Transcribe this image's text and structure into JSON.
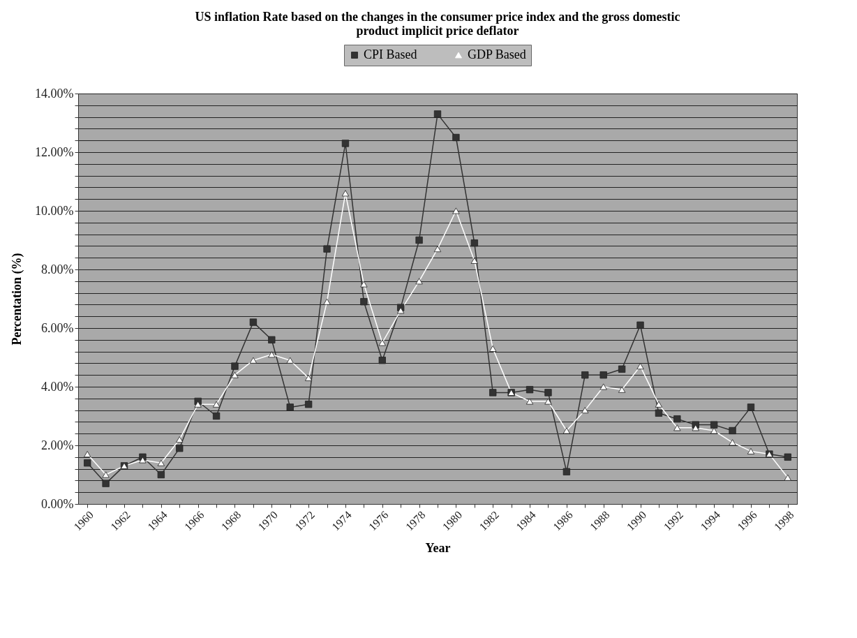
{
  "chart_data": {
    "type": "line",
    "title": "US inflation Rate based on the changes in the consumer price index and the gross domestic product implicit price deflator",
    "xlabel": "Year",
    "ylabel": "Percentation (%)",
    "categories": [
      "1960",
      null,
      "1962",
      null,
      "1964",
      null,
      "1966",
      null,
      "1968",
      null,
      "1970",
      null,
      "1972",
      null,
      "1974",
      null,
      "1976",
      null,
      "1978",
      null,
      "1980",
      null,
      "1982",
      null,
      "1984",
      null,
      "1986",
      null,
      "1988",
      null,
      "1990",
      null,
      "1992",
      null,
      "1994",
      null,
      "1996",
      null,
      "1998"
    ],
    "series": [
      {
        "name": "CPI Based",
        "color": "#333333",
        "marker": "square",
        "values": [
          1.4,
          0.7,
          1.3,
          1.6,
          1.0,
          1.9,
          3.5,
          3.0,
          4.7,
          6.2,
          5.6,
          3.3,
          3.4,
          8.7,
          12.3,
          6.9,
          4.9,
          6.7,
          9.0,
          13.3,
          12.5,
          8.9,
          3.8,
          3.8,
          3.9,
          3.8,
          1.1,
          4.4,
          4.4,
          4.6,
          6.1,
          3.1,
          2.9,
          2.7,
          2.7,
          2.5,
          3.3,
          1.7,
          1.6
        ]
      },
      {
        "name": "GDP Based",
        "color": "#ffffff",
        "marker": "triangle",
        "values": [
          1.7,
          1.0,
          1.3,
          1.5,
          1.4,
          2.2,
          3.4,
          3.4,
          4.4,
          4.9,
          5.1,
          4.9,
          4.3,
          6.9,
          10.6,
          7.5,
          5.5,
          6.6,
          7.6,
          8.7,
          10.0,
          8.3,
          5.3,
          3.8,
          3.5,
          3.5,
          2.5,
          3.2,
          4.0,
          3.9,
          4.7,
          3.4,
          2.6,
          2.6,
          2.5,
          2.1,
          1.8,
          1.7,
          0.9
        ]
      }
    ],
    "ylim": [
      0,
      14
    ],
    "yticks": [
      {
        "value": 0,
        "label": "0.00%"
      },
      {
        "value": 0.4,
        "label": null
      },
      {
        "value": 0.8,
        "label": null
      },
      {
        "value": 1.2,
        "label": null
      },
      {
        "value": 1.6,
        "label": null
      },
      {
        "value": 2,
        "label": "2.00%"
      },
      {
        "value": 2.4,
        "label": null
      },
      {
        "value": 2.8,
        "label": null
      },
      {
        "value": 3.2,
        "label": null
      },
      {
        "value": 3.6,
        "label": null
      },
      {
        "value": 4,
        "label": "4.00%"
      },
      {
        "value": 4.4,
        "label": null
      },
      {
        "value": 4.8,
        "label": null
      },
      {
        "value": 5.2,
        "label": null
      },
      {
        "value": 5.6,
        "label": null
      },
      {
        "value": 6,
        "label": "6.00%"
      },
      {
        "value": 6.4,
        "label": null
      },
      {
        "value": 6.8,
        "label": null
      },
      {
        "value": 7.2,
        "label": null
      },
      {
        "value": 7.6,
        "label": null
      },
      {
        "value": 8,
        "label": "8.00%"
      },
      {
        "value": 8.4,
        "label": null
      },
      {
        "value": 8.8,
        "label": null
      },
      {
        "value": 9.2,
        "label": null
      },
      {
        "value": 9.6,
        "label": null
      },
      {
        "value": 10,
        "label": "10.00%"
      },
      {
        "value": 10.4,
        "label": null
      },
      {
        "value": 10.8,
        "label": null
      },
      {
        "value": 11.2,
        "label": null
      },
      {
        "value": 11.6,
        "label": null
      },
      {
        "value": 12,
        "label": "12.00%"
      },
      {
        "value": 12.4,
        "label": null
      },
      {
        "value": 12.8,
        "label": null
      },
      {
        "value": 13.2,
        "label": null
      },
      {
        "value": 13.6,
        "label": null
      },
      {
        "value": 14,
        "label": "14.00%"
      }
    ],
    "grid": "y",
    "legend": "top"
  }
}
